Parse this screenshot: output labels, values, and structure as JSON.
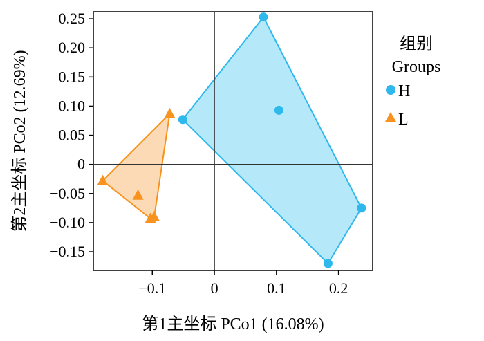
{
  "chart_data": {
    "type": "scatter",
    "xlabel": "第1主坐标  PCo1 (16.08%)",
    "ylabel": "第2主坐标  PCo2 (12.69%)",
    "xlim": [
      -0.195,
      0.255
    ],
    "ylim": [
      -0.182,
      0.262
    ],
    "x_ticks": [
      {
        "value": -0.1,
        "label": "−0.1"
      },
      {
        "value": 0,
        "label": "0"
      },
      {
        "value": 0.1,
        "label": "0.1"
      },
      {
        "value": 0.2,
        "label": "0.2"
      }
    ],
    "y_ticks": [
      {
        "value": 0.25,
        "label": "0.25"
      },
      {
        "value": 0.2,
        "label": "0.20"
      },
      {
        "value": 0.15,
        "label": "0.15"
      },
      {
        "value": 0.1,
        "label": "0.10"
      },
      {
        "value": 0.05,
        "label": "0.05"
      },
      {
        "value": 0,
        "label": "0"
      },
      {
        "value": -0.05,
        "label": "−0.05"
      },
      {
        "value": -0.1,
        "label": "−0.10"
      },
      {
        "value": -0.15,
        "label": "−0.15"
      }
    ],
    "zero_lines": true,
    "grid": false,
    "legend": {
      "title_line1": "组别",
      "title_line2": "Groups",
      "placement": "right"
    },
    "series": [
      {
        "name": "H",
        "marker": "circle",
        "color": "#2FB8EC",
        "fill": "#A8E4F8",
        "points": [
          {
            "x": -0.051,
            "y": 0.077
          },
          {
            "x": 0.079,
            "y": 0.253
          },
          {
            "x": 0.104,
            "y": 0.093
          },
          {
            "x": 0.237,
            "y": -0.075
          },
          {
            "x": 0.183,
            "y": -0.17
          }
        ],
        "hull": [
          0,
          1,
          3,
          4
        ]
      },
      {
        "name": "L",
        "marker": "triangle",
        "color": "#F7931E",
        "fill": "#FAD3A8",
        "points": [
          {
            "x": -0.072,
            "y": 0.087
          },
          {
            "x": -0.18,
            "y": -0.028
          },
          {
            "x": -0.123,
            "y": -0.053
          },
          {
            "x": -0.103,
            "y": -0.093
          },
          {
            "x": -0.097,
            "y": -0.09
          }
        ],
        "hull": [
          0,
          1,
          3,
          4
        ]
      }
    ]
  }
}
